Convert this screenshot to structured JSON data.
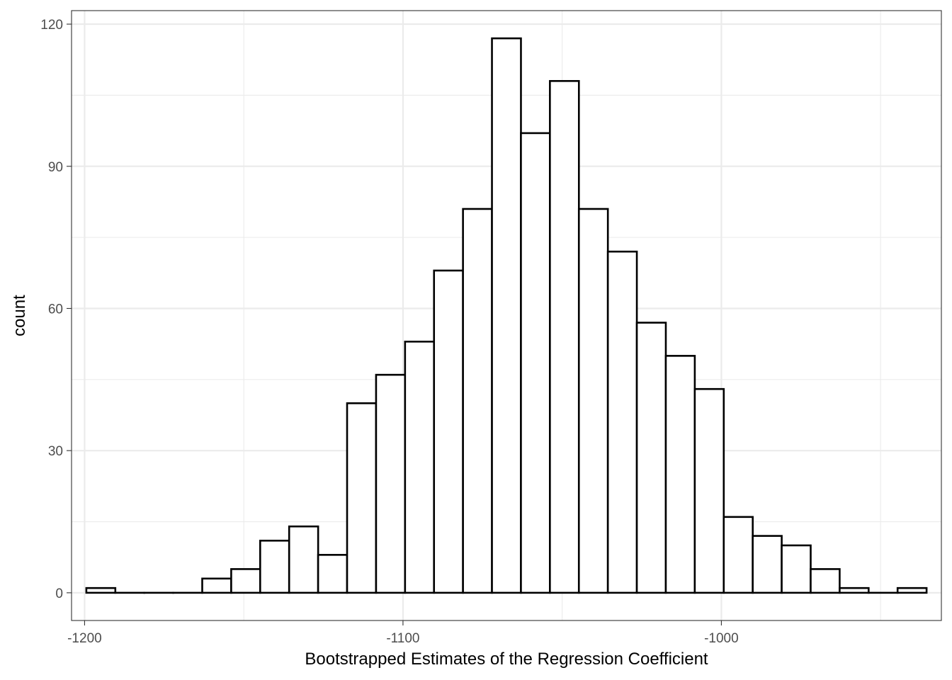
{
  "chart_data": {
    "type": "bar",
    "histogram": true,
    "title": "",
    "xlabel": "Bootstrapped Estimates of the Regression Coefficient",
    "ylabel": "count",
    "xlim": [
      -1204.1,
      -930.9
    ],
    "ylim": [
      -5.85,
      122.85
    ],
    "x_ticks": [
      -1200,
      -1100,
      -1000
    ],
    "x_tick_labels": [
      "-1200",
      "-1100",
      "-1000"
    ],
    "y_ticks": [
      0,
      30,
      60,
      90,
      120
    ],
    "y_tick_labels": [
      "0",
      "30",
      "60",
      "90",
      "120"
    ],
    "bin_width": 9.105,
    "bin_centers": [
      -1194.9,
      -1185.8,
      -1176.7,
      -1167.6,
      -1158.5,
      -1149.4,
      -1140.3,
      -1131.2,
      -1122.1,
      -1113.0,
      -1103.9,
      -1094.8,
      -1085.7,
      -1076.6,
      -1067.5,
      -1058.4,
      -1049.3,
      -1040.2,
      -1031.1,
      -1022.0,
      -1012.9,
      -1003.8,
      -994.7,
      -985.6,
      -976.5,
      -967.4,
      -958.3,
      -949.2,
      -940.1
    ],
    "values": [
      1,
      0,
      0,
      0,
      3,
      5,
      11,
      14,
      8,
      40,
      46,
      53,
      68,
      81,
      117,
      97,
      108,
      81,
      72,
      57,
      50,
      43,
      16,
      12,
      10,
      5,
      1,
      0,
      1
    ],
    "grid": true,
    "bar_fill": "#ffffff",
    "bar_outline": "#000000",
    "panel_border": "#333333",
    "grid_color": "#ebebeb"
  }
}
